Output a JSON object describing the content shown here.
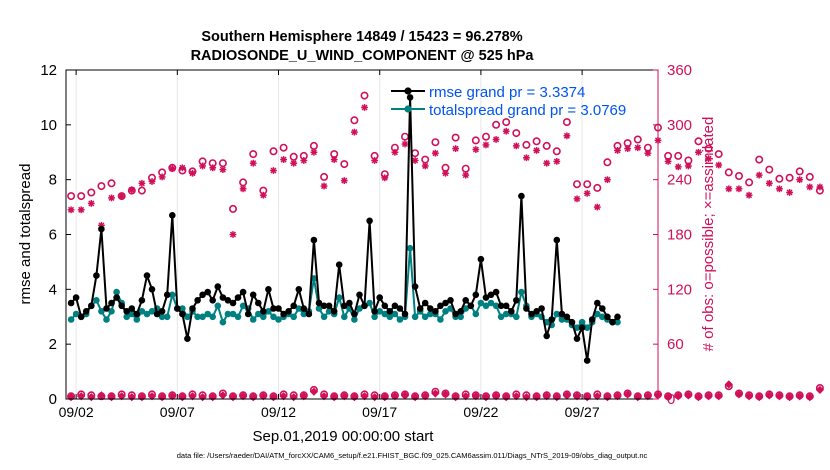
{
  "chart_data": {
    "type": "line",
    "title_line1": "Southern Hemisphere 14849 / 15423 = 96.278%",
    "title_line2": "RADIOSONDE_U_WIND_COMPONENT @ 525 hPa",
    "xlabel": "Sep.01,2019 00:00:00 start",
    "ylabel_left": "rmse and totalspread",
    "ylabel_right": "# of obs: o=possible; ×=assimilated",
    "footer": "data file: /Users/raeder/DAI/ATM_forcXX/CAM6_setup/f.e21.FHIST_BGC.f09_025.CAM6assim.011/Diags_NTrS_2019-09/obs_diag_output.nc",
    "x_range": [
      1.5,
      30.75
    ],
    "y_left_range": [
      0,
      12
    ],
    "y_right_range": [
      0,
      360
    ],
    "x_ticks": [
      {
        "v": 2,
        "label": "09/02"
      },
      {
        "v": 7,
        "label": "09/07"
      },
      {
        "v": 12,
        "label": "09/12"
      },
      {
        "v": 17,
        "label": "09/17"
      },
      {
        "v": 22,
        "label": "09/22"
      },
      {
        "v": 27,
        "label": "09/27"
      }
    ],
    "y_left_ticks": [
      "0",
      "2",
      "4",
      "6",
      "8",
      "10",
      "12"
    ],
    "y_right_ticks": [
      "0",
      "60",
      "120",
      "180",
      "240",
      "300",
      "360"
    ],
    "colors": {
      "rmse": "#000000",
      "spread": "#008080",
      "obs": "#d0105a",
      "legend_text": "#0055ee",
      "right_axis": "#d0105a"
    },
    "series": [
      {
        "name": "rmse grand pr = 3.3374",
        "values": [
          3.5,
          3.7,
          3.0,
          3.2,
          3.4,
          4.5,
          6.2,
          3.3,
          3.5,
          3.7,
          3.4,
          3.2,
          3.3,
          3.1,
          3.6,
          4.5,
          4.0,
          3.1,
          3.2,
          3.8,
          6.7,
          3.3,
          3.1,
          2.2,
          3.3,
          3.6,
          3.8,
          3.9,
          3.6,
          4.1,
          3.7,
          3.6,
          3.5,
          3.7,
          3.9,
          3.1,
          3.8,
          3.5,
          3.2,
          4.0,
          3.3,
          3.3,
          3.1,
          3.2,
          3.4,
          4.0,
          3.3,
          3.1,
          5.8,
          3.5,
          3.4,
          3.4,
          3.2,
          4.9,
          3.4,
          3.5,
          3.1,
          3.8,
          3.4,
          6.5,
          3.2,
          3.7,
          3.4,
          3.2,
          3.4,
          3.3,
          3.1,
          11.0,
          4.1,
          3.3,
          3.5,
          3.3,
          3.2,
          3.4,
          3.5,
          3.6,
          3.1,
          3.2,
          3.6,
          3.4,
          3.8,
          5.1,
          3.7,
          3.8,
          3.9,
          3.4,
          3.4,
          3.2,
          3.6,
          7.4,
          3.3,
          3.1,
          3.2,
          3.3,
          2.3,
          2.9,
          5.8,
          3.1,
          3.0,
          2.8,
          2.2,
          2.6,
          1.4,
          2.9,
          3.5,
          3.3,
          3.0,
          2.8,
          3.0
        ],
        "x_start": 1.75,
        "dx": 0.25
      },
      {
        "name": "totalspread grand pr = 3.0769",
        "values": [
          2.9,
          3.1,
          3.0,
          3.1,
          3.4,
          3.6,
          3.2,
          2.9,
          3.2,
          3.9,
          3.5,
          3.0,
          3.1,
          2.9,
          3.2,
          3.1,
          3.2,
          3.3,
          3.0,
          3.0,
          3.8,
          3.3,
          3.3,
          3.0,
          3.2,
          3.0,
          3.0,
          3.1,
          3.0,
          3.4,
          2.8,
          3.1,
          3.1,
          3.0,
          3.4,
          3.3,
          2.9,
          3.1,
          3.0,
          3.2,
          3.0,
          2.9,
          3.0,
          3.1,
          3.0,
          3.3,
          3.1,
          3.2,
          4.4,
          3.3,
          3.0,
          3.2,
          3.1,
          3.7,
          3.0,
          3.3,
          2.9,
          3.3,
          3.4,
          3.5,
          3.0,
          3.2,
          3.1,
          3.0,
          3.1,
          2.9,
          3.0,
          5.5,
          3.0,
          3.2,
          3.0,
          3.1,
          3.1,
          2.9,
          3.2,
          3.3,
          3.0,
          3.0,
          3.3,
          3.4,
          3.1,
          3.5,
          3.4,
          3.5,
          3.4,
          3.0,
          3.1,
          3.1,
          3.0,
          3.9,
          3.4,
          3.0,
          3.1,
          3.0,
          2.8,
          2.7,
          3.1,
          2.9,
          2.9,
          2.7,
          2.6,
          2.8,
          2.6,
          2.8,
          3.1,
          3.0,
          2.9,
          2.8,
          2.8
        ],
        "x_start": 1.75,
        "dx": 0.25
      },
      {
        "name": "possible obs (o)",
        "axis": "right",
        "x_start": 1.75,
        "dx": 0.5,
        "values": [
          222,
          222,
          226,
          233,
          236,
          222,
          228,
          228,
          242,
          248,
          253,
          250,
          249,
          260,
          258,
          258,
          208,
          237,
          268,
          228,
          271,
          275,
          265,
          266,
          277,
          243,
          268,
          257,
          305,
          332,
          266,
          246,
          275,
          287,
          269,
          262,
          281,
          253,
          286,
          252,
          283,
          287,
          300,
          303,
          291,
          278,
          282,
          277,
          271,
          303,
          235,
          235,
          231,
          259,
          277,
          280,
          284,
          275,
          297,
          266,
          266,
          261,
          282,
          274,
          268,
          248,
          244,
          237,
          262,
          251,
          241,
          242,
          249,
          243,
          228
        ]
      },
      {
        "name": "assimilated obs (×)",
        "axis": "right",
        "x_start": 1.75,
        "dx": 0.5,
        "values": [
          207,
          207,
          214,
          190,
          220,
          222,
          229,
          236,
          238,
          243,
          252,
          253,
          247,
          255,
          253,
          251,
          180,
          230,
          258,
          223,
          250,
          262,
          258,
          261,
          270,
          233,
          262,
          239,
          292,
          319,
          261,
          242,
          270,
          279,
          261,
          255,
          269,
          247,
          274,
          245,
          273,
          278,
          284,
          293,
          277,
          264,
          272,
          258,
          260,
          288,
          219,
          225,
          210,
          240,
          272,
          274,
          275,
          269,
          283,
          260,
          254,
          255,
          270,
          263,
          256,
          230,
          230,
          223,
          245,
          236,
          230,
          226,
          240,
          232,
          232
        ]
      },
      {
        "name": "possible obs (near zero, o)",
        "axis": "right",
        "x_start": 1.75,
        "dx": 0.5,
        "values": [
          3,
          5,
          4,
          3,
          3,
          5,
          4,
          3,
          5,
          3,
          4,
          3,
          5,
          4,
          3,
          6,
          3,
          4,
          3,
          4,
          3,
          5,
          4,
          4,
          10,
          5,
          3,
          4,
          3,
          5,
          4,
          3,
          4,
          5,
          3,
          4,
          8,
          6,
          3,
          5,
          4,
          3,
          4,
          3,
          5,
          4,
          3,
          4,
          3,
          5,
          4,
          3,
          5,
          3,
          4,
          6,
          3,
          4,
          5,
          3,
          4,
          5,
          3,
          4,
          4,
          14,
          6,
          4,
          3,
          5,
          4,
          3,
          4,
          3,
          12
        ]
      },
      {
        "name": "assimilated obs (near zero, ×)",
        "axis": "right",
        "x_start": 1.75,
        "dx": 0.5,
        "values": [
          2,
          3,
          2,
          4,
          2,
          3,
          2,
          2,
          3,
          2,
          3,
          2,
          3,
          2,
          2,
          4,
          2,
          3,
          2,
          3,
          2,
          3,
          2,
          3,
          8,
          3,
          2,
          3,
          2,
          3,
          2,
          2,
          3,
          4,
          2,
          3,
          6,
          5,
          2,
          3,
          3,
          2,
          3,
          2,
          3,
          2,
          2,
          3,
          2,
          4,
          3,
          2,
          3,
          2,
          3,
          5,
          2,
          3,
          4,
          2,
          3,
          4,
          2,
          3,
          3,
          16,
          5,
          3,
          2,
          4,
          3,
          2,
          3,
          2,
          10
        ]
      }
    ]
  }
}
